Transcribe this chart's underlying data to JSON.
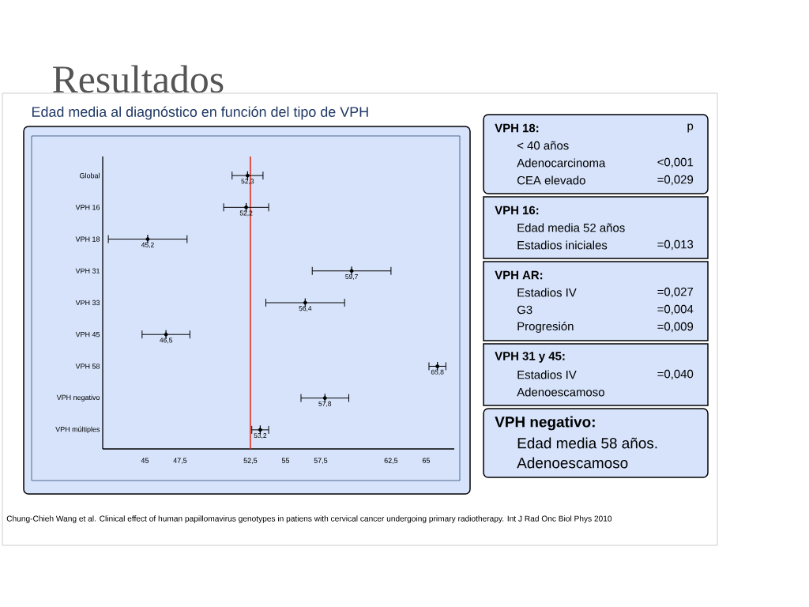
{
  "chart_data": {
    "type": "scatter",
    "title": "Resultados",
    "subtitle": "Edad media al diagnóstico en función del tipo de VPH",
    "orientation": "horizontal",
    "color": "#000000",
    "categories": [
      "Global",
      "VPH 16",
      "VPH 18",
      "VPH 31",
      "VPH 33",
      "VPH 45",
      "VPH 58",
      "VPH negativo",
      "VPH múltiples"
    ],
    "values": [
      52.3,
      52.2,
      45.2,
      59.7,
      56.4,
      46.5,
      65.8,
      57.8,
      53.2
    ],
    "errors": [
      1.1,
      1.6,
      2.8,
      2.8,
      2.8,
      1.7,
      0.6,
      1.7,
      0.6
    ],
    "value_labels": [
      "52,3",
      "52,2",
      "45,2",
      "59,7",
      "56,4",
      "46,5",
      "65,8",
      "57,8",
      "53,2"
    ],
    "xlim": [
      42,
      67
    ],
    "xticks": [
      45,
      {
        "value": 47.5,
        "label": "47,5"
      },
      {
        "value": 52.5,
        "label": "52,5"
      },
      55,
      {
        "value": 57.5,
        "label": "57,5"
      },
      {
        "value": 62.5,
        "label": "62,5"
      },
      65
    ],
    "ref_lines": [
      {
        "axis": "x",
        "value": 52.5,
        "color": "#e0301e"
      }
    ],
    "annotations": [
      "Chung-Chieh Wang et al. Clinical effect of human papillomavirus genotypes in patiens with cervical cancer undergoing primary radiotherapy. Int J Rad Onc Biol Phys 2010",
      "VPH 18:",
      "p",
      "< 40 años",
      "Adenocarcinoma",
      "<0,001",
      "CEA elevado",
      "=0,029",
      "VPH 16:",
      "Edad media 52 años",
      "Estadios iniciales",
      "=0,013",
      "VPH AR:",
      "Estadios IV",
      "=0,027",
      "G3",
      "=0,004",
      "Progresión",
      "=0,009",
      "VPH 31 y 45:",
      "Estadios IV",
      "=0,040",
      "Adenoescamoso",
      "VPH negativo:",
      "Edad media 58 años.",
      "Adenoescamoso"
    ]
  }
}
